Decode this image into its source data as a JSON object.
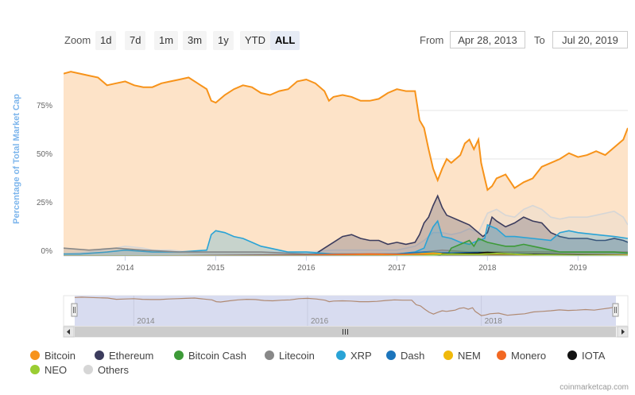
{
  "toolbar": {
    "zoom_label": "Zoom",
    "buttons": [
      "1d",
      "7d",
      "1m",
      "3m",
      "1y",
      "YTD",
      "ALL"
    ],
    "active": "ALL",
    "from_label": "From",
    "from_value": "Apr 28, 2013",
    "to_label": "To",
    "to_value": "Jul 20, 2019"
  },
  "credit": "coinmarketcap.com",
  "chart_data": {
    "type": "area",
    "title": "",
    "xlabel": "",
    "ylabel": "Percentage of Total Market Cap",
    "xlim": [
      2013.32,
      2019.55
    ],
    "ylim": [
      0,
      100
    ],
    "y_ticks": [
      0,
      25,
      50,
      75
    ],
    "y_tick_labels": [
      "0%",
      "25%",
      "50%",
      "75%"
    ],
    "x_ticks": [
      2014,
      2015,
      2016,
      2017,
      2018,
      2019
    ],
    "x_tick_labels": [
      "2014",
      "2015",
      "2016",
      "2017",
      "2018",
      "2019"
    ],
    "navigator_tick_labels": [
      "2014",
      "2016",
      "2018"
    ],
    "grid": true,
    "legend_position": "bottom",
    "series": [
      {
        "name": "Bitcoin",
        "color": "#f7931a",
        "fill": "#fde3c8",
        "x": [
          2013.32,
          2013.4,
          2013.5,
          2013.6,
          2013.7,
          2013.8,
          2013.9,
          2014.0,
          2014.1,
          2014.2,
          2014.3,
          2014.4,
          2014.5,
          2014.6,
          2014.7,
          2014.8,
          2014.9,
          2014.95,
          2015.0,
          2015.1,
          2015.2,
          2015.3,
          2015.4,
          2015.5,
          2015.6,
          2015.7,
          2015.8,
          2015.9,
          2016.0,
          2016.1,
          2016.2,
          2016.25,
          2016.3,
          2016.4,
          2016.5,
          2016.6,
          2016.7,
          2016.8,
          2016.9,
          2017.0,
          2017.1,
          2017.2,
          2017.25,
          2017.3,
          2017.35,
          2017.4,
          2017.45,
          2017.5,
          2017.55,
          2017.6,
          2017.65,
          2017.7,
          2017.75,
          2017.8,
          2017.85,
          2017.9,
          2017.93,
          2017.97,
          2018.0,
          2018.05,
          2018.1,
          2018.2,
          2018.3,
          2018.4,
          2018.5,
          2018.6,
          2018.7,
          2018.8,
          2018.9,
          2019.0,
          2019.1,
          2019.2,
          2019.3,
          2019.4,
          2019.5,
          2019.55
        ],
        "values": [
          94,
          95,
          94,
          93,
          92,
          88,
          89,
          90,
          88,
          87,
          87,
          89,
          90,
          91,
          92,
          89,
          86,
          80,
          79,
          83,
          86,
          88,
          87,
          84,
          83,
          85,
          86,
          90,
          91,
          89,
          85,
          80,
          82,
          83,
          82,
          80,
          80,
          81,
          84,
          86,
          85,
          85,
          70,
          66,
          55,
          45,
          39,
          45,
          50,
          48,
          50,
          52,
          58,
          60,
          55,
          60,
          48,
          40,
          34,
          36,
          40,
          42,
          35,
          38,
          40,
          46,
          48,
          50,
          53,
          51,
          52,
          54,
          52,
          56,
          60,
          66
        ]
      },
      {
        "name": "Ethereum",
        "color": "#3c3c5d",
        "x": [
          2013.32,
          2015.6,
          2015.8,
          2016.0,
          2016.1,
          2016.2,
          2016.3,
          2016.4,
          2016.5,
          2016.6,
          2016.7,
          2016.8,
          2016.9,
          2017.0,
          2017.1,
          2017.2,
          2017.25,
          2017.3,
          2017.35,
          2017.4,
          2017.45,
          2017.5,
          2017.55,
          2017.6,
          2017.7,
          2017.8,
          2017.9,
          2017.95,
          2018.0,
          2018.05,
          2018.1,
          2018.2,
          2018.3,
          2018.4,
          2018.5,
          2018.6,
          2018.7,
          2018.8,
          2018.9,
          2019.0,
          2019.1,
          2019.2,
          2019.3,
          2019.4,
          2019.5,
          2019.55
        ],
        "values": [
          0,
          0,
          0.3,
          0.5,
          1,
          4,
          7,
          10,
          11,
          9,
          8,
          8,
          6,
          7,
          6,
          7,
          11,
          17,
          20,
          26,
          31,
          25,
          21,
          20,
          18,
          16,
          12,
          10,
          12,
          20,
          18,
          15,
          17,
          20,
          18,
          17,
          12,
          10,
          9,
          9,
          9,
          8,
          8,
          9,
          8,
          7
        ]
      },
      {
        "name": "Bitcoin Cash",
        "color": "#3d9a38",
        "x": [
          2013.32,
          2017.55,
          2017.6,
          2017.7,
          2017.8,
          2017.85,
          2017.9,
          2018.0,
          2018.1,
          2018.2,
          2018.3,
          2018.4,
          2018.5,
          2018.6,
          2018.7,
          2018.8,
          2018.9,
          2019.0,
          2019.2,
          2019.4,
          2019.55
        ],
        "values": [
          0,
          0,
          4,
          6,
          8,
          5,
          9,
          7,
          6,
          5,
          5,
          6,
          5,
          4,
          3,
          2,
          2,
          2,
          2,
          2,
          1.5
        ]
      },
      {
        "name": "Litecoin",
        "color": "#888888",
        "x": [
          2013.32,
          2013.6,
          2013.9,
          2014.2,
          2014.6,
          2015.0,
          2015.5,
          2016.0,
          2016.5,
          2017.0,
          2017.3,
          2017.5,
          2017.8,
          2018.0,
          2018.3,
          2018.6,
          2019.0,
          2019.3,
          2019.55
        ],
        "values": [
          4,
          3,
          4,
          3,
          2,
          2,
          2,
          1,
          1,
          1,
          2,
          3,
          2,
          2,
          2,
          2,
          2,
          2,
          2
        ]
      },
      {
        "name": "XRP",
        "color": "#29a3d6",
        "x": [
          2013.32,
          2013.5,
          2013.8,
          2014.0,
          2014.3,
          2014.6,
          2014.9,
          2014.95,
          2015.0,
          2015.1,
          2015.2,
          2015.3,
          2015.4,
          2015.5,
          2015.6,
          2015.7,
          2015.8,
          2015.9,
          2016.0,
          2016.3,
          2016.6,
          2016.9,
          2017.0,
          2017.2,
          2017.3,
          2017.35,
          2017.4,
          2017.45,
          2017.5,
          2017.6,
          2017.7,
          2017.8,
          2017.9,
          2017.97,
          2018.0,
          2018.1,
          2018.2,
          2018.3,
          2018.5,
          2018.7,
          2018.8,
          2018.9,
          2019.0,
          2019.2,
          2019.4,
          2019.55
        ],
        "values": [
          1,
          1,
          2,
          3,
          2,
          2,
          3,
          11,
          13,
          12,
          10,
          9,
          7,
          5,
          4,
          3,
          2,
          2,
          2,
          1,
          1,
          1,
          1,
          2,
          4,
          10,
          15,
          18,
          10,
          9,
          7,
          6,
          8,
          9,
          16,
          14,
          10,
          10,
          9,
          8,
          12,
          13,
          12,
          11,
          10,
          9
        ]
      },
      {
        "name": "Dash",
        "color": "#1c75bc",
        "x": [
          2013.32,
          2014.5,
          2015.0,
          2015.5,
          2016.0,
          2016.5,
          2017.0,
          2017.3,
          2017.6,
          2017.9,
          2018.2,
          2018.6,
          2019.0,
          2019.55
        ],
        "values": [
          0,
          0,
          0.3,
          0.5,
          0.6,
          0.8,
          1,
          2,
          1.5,
          1.8,
          1.2,
          0.8,
          0.6,
          0.5
        ]
      },
      {
        "name": "NEM",
        "color": "#f0b90b",
        "x": [
          2013.32,
          2015.4,
          2016.0,
          2016.8,
          2017.2,
          2017.4,
          2017.6,
          2017.9,
          2018.1,
          2018.4,
          2019.0,
          2019.55
        ],
        "values": [
          0,
          0,
          0.2,
          0.3,
          1,
          1.5,
          1,
          1.2,
          1.5,
          0.5,
          0.2,
          0.2
        ]
      },
      {
        "name": "Monero",
        "color": "#f26822",
        "x": [
          2013.32,
          2014.3,
          2015.0,
          2016.0,
          2016.7,
          2017.0,
          2017.5,
          2018.0,
          2018.5,
          2019.0,
          2019.55
        ],
        "values": [
          0,
          0,
          0.2,
          0.4,
          1,
          0.8,
          0.8,
          0.9,
          0.8,
          0.6,
          0.5
        ]
      },
      {
        "name": "IOTA",
        "color": "#111111",
        "x": [
          2013.32,
          2017.45,
          2017.5,
          2017.9,
          2018.0,
          2018.3,
          2018.7,
          2019.0,
          2019.55
        ],
        "values": [
          0,
          0,
          1,
          1.5,
          1.8,
          1,
          0.7,
          0.5,
          0.3
        ]
      },
      {
        "name": "NEO",
        "color": "#9acd32",
        "x": [
          2013.32,
          2016.9,
          2017.3,
          2017.6,
          2017.9,
          2018.1,
          2018.5,
          2019.0,
          2019.55
        ],
        "values": [
          0,
          0,
          0.3,
          1,
          0.8,
          1.3,
          0.6,
          0.3,
          0.3
        ]
      },
      {
        "name": "Others",
        "color": "#d6d6d6",
        "x": [
          2013.32,
          2013.6,
          2013.9,
          2014.0,
          2014.2,
          2014.3,
          2014.5,
          2014.7,
          2015.0,
          2015.3,
          2015.6,
          2015.9,
          2016.0,
          2016.3,
          2016.5,
          2016.8,
          2017.0,
          2017.2,
          2017.3,
          2017.4,
          2017.5,
          2017.6,
          2017.7,
          2017.8,
          2017.9,
          2018.0,
          2018.1,
          2018.2,
          2018.3,
          2018.4,
          2018.5,
          2018.6,
          2018.7,
          2018.8,
          2018.9,
          2019.0,
          2019.1,
          2019.2,
          2019.3,
          2019.4,
          2019.5,
          2019.55
        ],
        "values": [
          1,
          2,
          4,
          5,
          4,
          3,
          3,
          2,
          2,
          2,
          2,
          2,
          2,
          3,
          3,
          3,
          3,
          5,
          8,
          12,
          12,
          11,
          12,
          14,
          12,
          22,
          24,
          21,
          20,
          24,
          26,
          24,
          20,
          19,
          20,
          20,
          20,
          21,
          22,
          23,
          20,
          16
        ]
      }
    ]
  }
}
